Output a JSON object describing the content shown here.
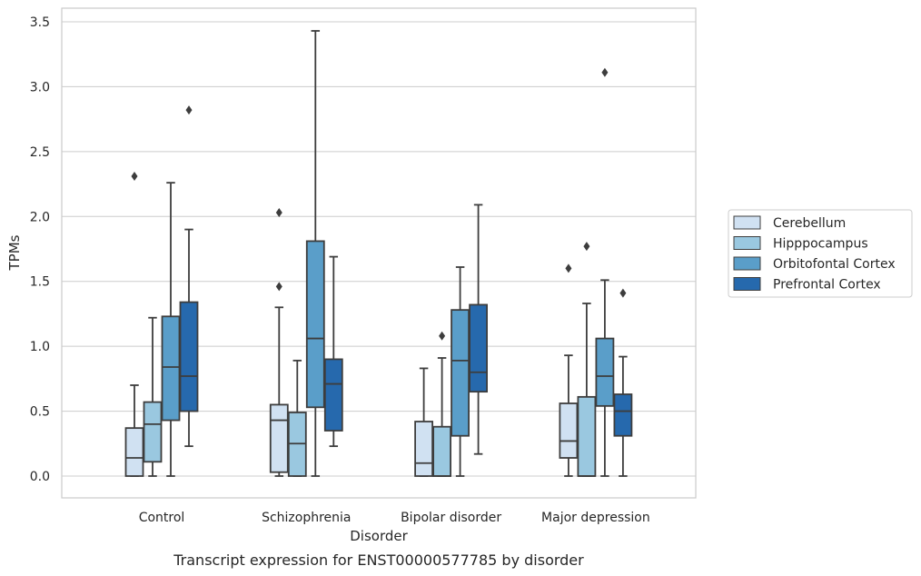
{
  "chart_data": {
    "type": "box",
    "title": "",
    "caption": "Transcript expression for ENST00000577785 by disorder",
    "xlabel": "Disorder",
    "ylabel": "TPMs",
    "ylim": [
      -0.17,
      3.6
    ],
    "yticks": [
      "0.0",
      "0.5",
      "1.0",
      "1.5",
      "2.0",
      "2.5",
      "3.0",
      "3.5"
    ],
    "grid": "horizontal",
    "legend_position": "right",
    "categories": [
      "Control",
      "Schizophrenia",
      "Bipolar disorder",
      "Major depression"
    ],
    "series": [
      {
        "name": "Cerebellum",
        "color": "#d0e1f2",
        "boxes": [
          {
            "low": 0.0,
            "q1": 0.0,
            "median": 0.14,
            "q3": 0.37,
            "high": 0.7,
            "outliers": [
              2.31
            ]
          },
          {
            "low": 0.0,
            "q1": 0.03,
            "median": 0.43,
            "q3": 0.55,
            "high": 1.3,
            "outliers": [
              1.46,
              2.03
            ]
          },
          {
            "low": 0.0,
            "q1": 0.0,
            "median": 0.1,
            "q3": 0.42,
            "high": 0.83,
            "outliers": []
          },
          {
            "low": 0.0,
            "q1": 0.14,
            "median": 0.27,
            "q3": 0.56,
            "high": 0.93,
            "outliers": [
              1.6
            ]
          }
        ]
      },
      {
        "name": "Hipppocampus",
        "color": "#9ac8e0",
        "boxes": [
          {
            "low": 0.0,
            "q1": 0.11,
            "median": 0.4,
            "q3": 0.57,
            "high": 1.22,
            "outliers": []
          },
          {
            "low": 0.0,
            "q1": 0.0,
            "median": 0.25,
            "q3": 0.49,
            "high": 0.89,
            "outliers": []
          },
          {
            "low": 0.0,
            "q1": 0.0,
            "median": 0.0,
            "q3": 0.38,
            "high": 0.91,
            "outliers": [
              1.08
            ]
          },
          {
            "low": 0.0,
            "q1": 0.0,
            "median": 0.0,
            "q3": 0.61,
            "high": 1.33,
            "outliers": [
              1.77
            ]
          }
        ]
      },
      {
        "name": "Orbitofontal Cortex",
        "color": "#5a9ec9",
        "boxes": [
          {
            "low": 0.0,
            "q1": 0.43,
            "median": 0.84,
            "q3": 1.23,
            "high": 2.26,
            "outliers": []
          },
          {
            "low": 0.0,
            "q1": 0.53,
            "median": 1.06,
            "q3": 1.81,
            "high": 3.43,
            "outliers": []
          },
          {
            "low": 0.0,
            "q1": 0.31,
            "median": 0.89,
            "q3": 1.28,
            "high": 1.61,
            "outliers": []
          },
          {
            "low": 0.0,
            "q1": 0.54,
            "median": 0.77,
            "q3": 1.06,
            "high": 1.51,
            "outliers": [
              3.11
            ]
          }
        ]
      },
      {
        "name": "Prefrontal Cortex",
        "color": "#2669ad",
        "boxes": [
          {
            "low": 0.23,
            "q1": 0.5,
            "median": 0.77,
            "q3": 1.34,
            "high": 1.9,
            "outliers": [
              2.82
            ]
          },
          {
            "low": 0.23,
            "q1": 0.35,
            "median": 0.71,
            "q3": 0.9,
            "high": 1.69,
            "outliers": []
          },
          {
            "low": 0.17,
            "q1": 0.65,
            "median": 0.8,
            "q3": 1.32,
            "high": 2.09,
            "outliers": []
          },
          {
            "low": 0.0,
            "q1": 0.31,
            "median": 0.5,
            "q3": 0.63,
            "high": 0.92,
            "outliers": [
              1.41
            ]
          }
        ]
      }
    ]
  }
}
